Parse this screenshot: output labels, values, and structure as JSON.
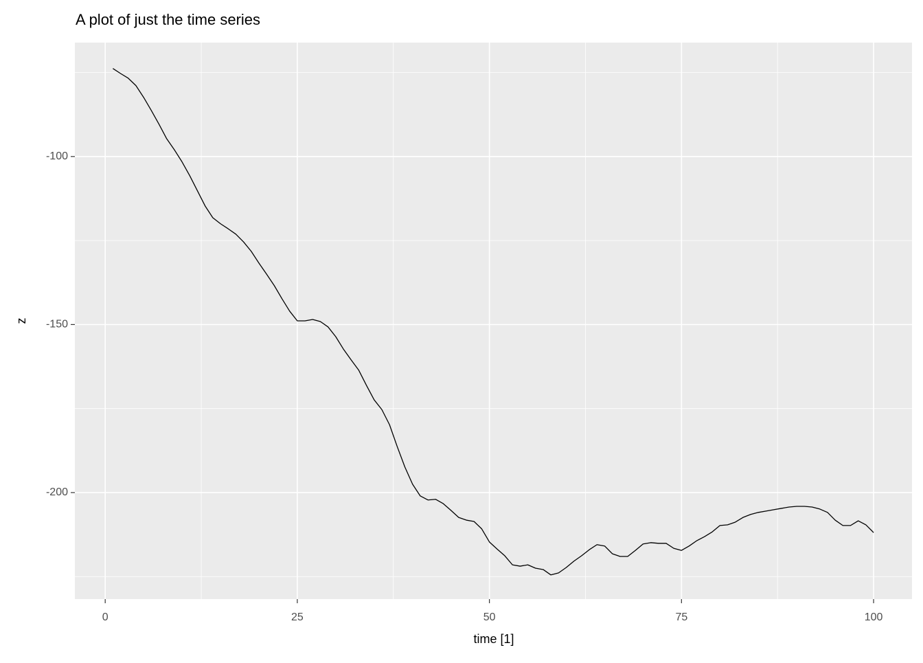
{
  "chart_data": {
    "type": "line",
    "title": "A plot of just the time series",
    "x_label": "time [1]",
    "y_label": "z",
    "x": [
      1,
      2,
      3,
      4,
      5,
      6,
      7,
      8,
      9,
      10,
      11,
      12,
      13,
      14,
      15,
      16,
      17,
      18,
      19,
      20,
      21,
      22,
      23,
      24,
      25,
      26,
      27,
      28,
      29,
      30,
      31,
      32,
      33,
      34,
      35,
      36,
      37,
      38,
      39,
      40,
      41,
      42,
      43,
      44,
      45,
      46,
      47,
      48,
      49,
      50,
      51,
      52,
      53,
      54,
      55,
      56,
      57,
      58,
      59,
      60,
      61,
      62,
      63,
      64,
      65,
      66,
      67,
      68,
      69,
      70,
      71,
      72,
      73,
      74,
      75,
      76,
      77,
      78,
      79,
      80,
      81,
      82,
      83,
      84,
      85,
      86,
      87,
      88,
      89,
      90,
      91,
      92,
      93,
      94,
      95,
      96,
      97,
      98,
      99,
      100
    ],
    "series": [
      {
        "color": "#000000",
        "values": [
          -73.8,
          -75.3,
          -76.7,
          -78.9,
          -82.4,
          -86.3,
          -90.4,
          -94.7,
          -98,
          -101.6,
          -105.7,
          -110.2,
          -114.7,
          -118.2,
          -120,
          -121.5,
          -123.1,
          -125.4,
          -128.2,
          -131.7,
          -135,
          -138.4,
          -142.3,
          -146,
          -148.9,
          -148.9,
          -148.5,
          -149.1,
          -150.7,
          -153.6,
          -157.3,
          -160.5,
          -163.6,
          -168.1,
          -172.4,
          -175.3,
          -179.8,
          -186.3,
          -192.4,
          -197.5,
          -201,
          -202.2,
          -202,
          -203.3,
          -205.3,
          -207.4,
          -208.2,
          -208.6,
          -210.8,
          -214.7,
          -216.8,
          -218.8,
          -221.5,
          -221.9,
          -221.5,
          -222.5,
          -222.9,
          -224.5,
          -223.9,
          -222.3,
          -220.4,
          -218.8,
          -217,
          -215.5,
          -215.9,
          -218.2,
          -219,
          -219,
          -217.2,
          -215.3,
          -214.9,
          -215.1,
          -215.1,
          -216.6,
          -217.2,
          -215.9,
          -214.3,
          -213.1,
          -211.7,
          -209.8,
          -209.6,
          -208.8,
          -207.4,
          -206.5,
          -205.9,
          -205.5,
          -205.1,
          -204.7,
          -204.3,
          -204.1,
          -204.1,
          -204.3,
          -204.9,
          -205.9,
          -208.2,
          -209.8,
          -209.8,
          -208.4,
          -209.6,
          -211.9
        ]
      }
    ],
    "xlim": [
      -3.95,
      105
    ],
    "xticks": [
      0,
      25,
      50,
      75,
      100
    ],
    "ylim": [
      -231.7,
      -66.1
    ],
    "yticks": [
      -200,
      -150,
      -100
    ],
    "grid": true
  }
}
